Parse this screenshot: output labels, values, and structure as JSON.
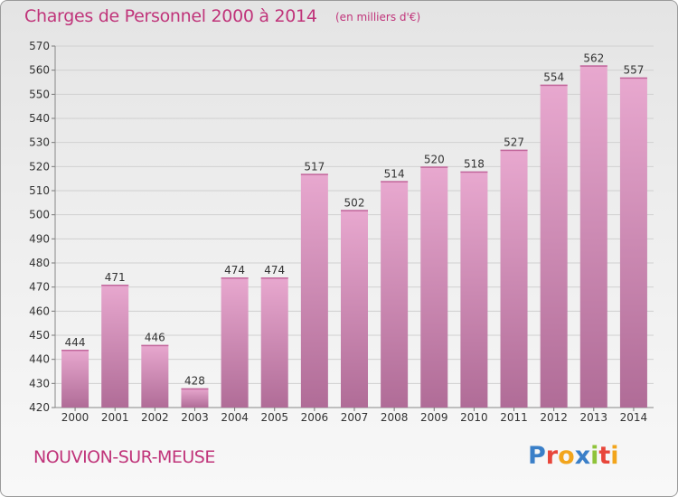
{
  "header": {
    "title": "Charges de Personnel 2000 à 2014",
    "unit": "(en milliers d'€)"
  },
  "footer": {
    "town": "NOUVION-SUR-MEUSE",
    "logo": "Proxiti",
    "logo_colors": [
      "#3a7fc8",
      "#e8463a",
      "#f2a51c",
      "#3a7fc8",
      "#8fc33a",
      "#e8463a",
      "#f2a51c"
    ]
  },
  "colors": {
    "title": "#c0347a",
    "bar_top": "#e8a8cf",
    "bar_bottom": "#b06c97",
    "grid": "#d0d0d0"
  },
  "chart_data": {
    "type": "bar",
    "categories": [
      "2000",
      "2001",
      "2002",
      "2003",
      "2004",
      "2005",
      "2006",
      "2007",
      "2008",
      "2009",
      "2010",
      "2011",
      "2012",
      "2013",
      "2014"
    ],
    "values": [
      444,
      471,
      446,
      428,
      474,
      474,
      517,
      502,
      514,
      520,
      518,
      527,
      554,
      562,
      557
    ],
    "ylim": [
      420,
      570
    ],
    "yticks": [
      420,
      430,
      440,
      450,
      460,
      470,
      480,
      490,
      500,
      510,
      520,
      530,
      540,
      550,
      560,
      570
    ],
    "grid": true
  }
}
